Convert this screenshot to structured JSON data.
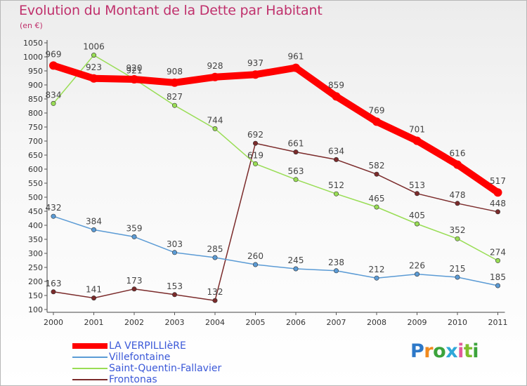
{
  "chart_data": {
    "type": "line",
    "title": "Evolution du Montant de la Dette par Habitant",
    "subtitle": "(en €)",
    "x": [
      "2000",
      "2001",
      "2002",
      "2003",
      "2004",
      "2005",
      "2006",
      "2007",
      "2008",
      "2009",
      "2010",
      "2011"
    ],
    "ylim": [
      100,
      1050
    ],
    "yticks": [
      100,
      150,
      200,
      250,
      300,
      350,
      400,
      450,
      500,
      550,
      600,
      650,
      700,
      750,
      800,
      850,
      900,
      950,
      1000,
      1050
    ],
    "grid": false,
    "legend_position": "bottom-left",
    "series": [
      {
        "name": "LA VERPILLIèRE",
        "color": "#ff0000",
        "values": [
          969,
          923,
          920,
          908,
          928,
          937,
          961,
          859,
          769,
          701,
          616,
          517
        ]
      },
      {
        "name": "Villefontaine",
        "color": "#5b9bd5",
        "values": [
          432,
          384,
          359,
          303,
          285,
          260,
          245,
          238,
          212,
          226,
          215,
          185
        ]
      },
      {
        "name": "Saint-Quentin-Fallavier",
        "color": "#99dd55",
        "values": [
          834,
          1006,
          921,
          827,
          744,
          619,
          563,
          512,
          465,
          405,
          352,
          274
        ]
      },
      {
        "name": "Frontonas",
        "color": "#7b2b2b",
        "values": [
          163,
          141,
          173,
          153,
          132,
          692,
          661,
          634,
          582,
          513,
          478,
          448
        ]
      }
    ]
  },
  "branding": {
    "logo_parts": [
      "P",
      "r",
      "o",
      "x",
      "i",
      "t",
      "i"
    ]
  }
}
